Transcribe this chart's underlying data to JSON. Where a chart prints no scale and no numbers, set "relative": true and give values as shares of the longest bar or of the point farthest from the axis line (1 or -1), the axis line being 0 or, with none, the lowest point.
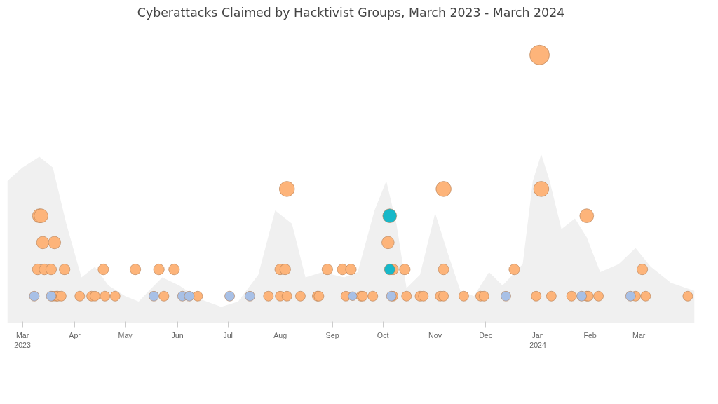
{
  "chart_data": {
    "type": "bubble",
    "title": "Cyberattacks Claimed by Hacktivist Groups, March 2023 - March 2024",
    "relative": true,
    "xlim": [
      "2023-02-20",
      "2024-04-03"
    ],
    "xticks": [
      {
        "value": "2023-03-01",
        "label": "Mar\n2023"
      },
      {
        "value": "2023-04-01",
        "label": "Apr"
      },
      {
        "value": "2023-05-01",
        "label": "May"
      },
      {
        "value": "2023-06-01",
        "label": "Jun"
      },
      {
        "value": "2023-07-01",
        "label": "Jul"
      },
      {
        "value": "2023-08-01",
        "label": "Aug"
      },
      {
        "value": "2023-09-01",
        "label": "Sep"
      },
      {
        "value": "2023-10-01",
        "label": "Oct"
      },
      {
        "value": "2023-11-01",
        "label": "Nov"
      },
      {
        "value": "2023-12-01",
        "label": "Dec"
      },
      {
        "value": "2024-01-01",
        "label": "Jan\n2024"
      },
      {
        "value": "2024-02-01",
        "label": "Feb"
      },
      {
        "value": "2024-03-01",
        "label": "Mar"
      }
    ],
    "grid": false,
    "series": [
      {
        "type": "area",
        "color": "#f0f0f0",
        "x": [
          "2023-02-20",
          "2023-03-01",
          "2023-03-11",
          "2023-03-19",
          "2023-03-27",
          "2023-04-05",
          "2023-04-13",
          "2023-04-21",
          "2023-05-01",
          "2023-05-09",
          "2023-05-15",
          "2023-05-23",
          "2023-06-02",
          "2023-06-14",
          "2023-06-27",
          "2023-07-07",
          "2023-07-19",
          "2023-07-29",
          "2023-08-08",
          "2023-08-16",
          "2023-08-26",
          "2023-09-08",
          "2023-09-16",
          "2023-09-26",
          "2023-10-03",
          "2023-10-09",
          "2023-10-15",
          "2023-10-23",
          "2023-11-01",
          "2023-11-08",
          "2023-11-16",
          "2023-11-24",
          "2023-12-03",
          "2023-12-11",
          "2023-12-23",
          "2023-12-29",
          "2024-01-03",
          "2024-01-08",
          "2024-01-15",
          "2024-01-23",
          "2024-01-30",
          "2024-02-07",
          "2024-02-18",
          "2024-02-28",
          "2024-03-08",
          "2024-03-20",
          "2024-04-03"
        ],
        "values": [
          0.53,
          0.58,
          0.62,
          0.58,
          0.37,
          0.17,
          0.21,
          0.14,
          0.1,
          0.08,
          0.12,
          0.17,
          0.14,
          0.09,
          0.06,
          0.08,
          0.18,
          0.42,
          0.37,
          0.17,
          0.19,
          0.17,
          0.19,
          0.42,
          0.53,
          0.37,
          0.13,
          0.18,
          0.41,
          0.27,
          0.12,
          0.1,
          0.19,
          0.14,
          0.22,
          0.53,
          0.63,
          0.53,
          0.35,
          0.39,
          0.32,
          0.19,
          0.22,
          0.28,
          0.21,
          0.15,
          0.12
        ]
      },
      {
        "color": "#fdb47a",
        "x": [
          "2023-03-19",
          "2023-03-21",
          "2023-03-22",
          "2023-03-24",
          "2023-04-04",
          "2023-04-11",
          "2023-04-13",
          "2023-04-19",
          "2023-04-25",
          "2023-05-24",
          "2023-06-13",
          "2023-07-25",
          "2023-08-01",
          "2023-08-05",
          "2023-08-13",
          "2023-08-23",
          "2023-08-24",
          "2023-09-09",
          "2023-09-18",
          "2023-09-19",
          "2023-09-25",
          "2023-10-07",
          "2023-10-15",
          "2023-10-23",
          "2023-10-25",
          "2023-11-04",
          "2023-11-06",
          "2023-11-18",
          "2023-11-28",
          "2023-11-30",
          "2023-12-31",
          "2024-01-09",
          "2024-01-21",
          "2024-01-30",
          "2024-01-31",
          "2024-02-06",
          "2024-02-28",
          "2024-03-05",
          "2024-03-30",
          "2023-03-10",
          "2023-03-14",
          "2023-03-18",
          "2023-03-26",
          "2023-04-18",
          "2023-05-07",
          "2023-05-21",
          "2023-05-30",
          "2023-08-01",
          "2023-08-04",
          "2023-08-29",
          "2023-09-07",
          "2023-09-12",
          "2023-10-07",
          "2023-10-14",
          "2023-11-06",
          "2023-12-18",
          "2024-03-03",
          "2023-03-13",
          "2023-03-20",
          "2023-10-04",
          "2023-03-11",
          "2023-03-12",
          "2024-01-30",
          "2023-08-05",
          "2023-11-06",
          "2024-01-03",
          "2024-01-02"
        ],
        "values": [
          0.1,
          0.1,
          0.1,
          0.1,
          0.1,
          0.1,
          0.1,
          0.1,
          0.1,
          0.1,
          0.1,
          0.1,
          0.1,
          0.1,
          0.1,
          0.1,
          0.1,
          0.1,
          0.1,
          0.1,
          0.1,
          0.1,
          0.1,
          0.1,
          0.1,
          0.1,
          0.1,
          0.1,
          0.1,
          0.1,
          0.1,
          0.1,
          0.1,
          0.1,
          0.1,
          0.1,
          0.1,
          0.1,
          0.1,
          0.2,
          0.2,
          0.2,
          0.2,
          0.2,
          0.2,
          0.2,
          0.2,
          0.2,
          0.2,
          0.2,
          0.2,
          0.2,
          0.2,
          0.2,
          0.2,
          0.2,
          0.2,
          0.3,
          0.3,
          0.3,
          0.4,
          0.4,
          0.4,
          0.5,
          0.5,
          0.5,
          1.0
        ],
        "sizes": [
          0.25,
          0.25,
          0.25,
          0.25,
          0.25,
          0.25,
          0.25,
          0.25,
          0.25,
          0.25,
          0.25,
          0.25,
          0.25,
          0.25,
          0.25,
          0.25,
          0.25,
          0.25,
          0.25,
          0.25,
          0.25,
          0.25,
          0.25,
          0.25,
          0.25,
          0.25,
          0.25,
          0.25,
          0.25,
          0.25,
          0.25,
          0.25,
          0.25,
          0.25,
          0.25,
          0.25,
          0.25,
          0.25,
          0.25,
          0.3,
          0.3,
          0.3,
          0.3,
          0.3,
          0.3,
          0.3,
          0.3,
          0.3,
          0.3,
          0.3,
          0.3,
          0.3,
          0.3,
          0.3,
          0.3,
          0.3,
          0.3,
          0.4,
          0.4,
          0.4,
          0.5,
          0.5,
          0.5,
          0.6,
          0.6,
          0.6,
          1.0
        ]
      },
      {
        "color": "#a8c0e6",
        "x": [
          "2023-03-08",
          "2023-03-18",
          "2023-05-18",
          "2023-06-04",
          "2023-06-08",
          "2023-07-02",
          "2023-07-14",
          "2023-09-13",
          "2023-10-06",
          "2023-12-13",
          "2024-01-27",
          "2024-02-25"
        ],
        "values": [
          0.1,
          0.1,
          0.1,
          0.1,
          0.1,
          0.1,
          0.1,
          0.1,
          0.1,
          0.1,
          0.1,
          0.1
        ],
        "sizes": [
          0.25,
          0.25,
          0.25,
          0.25,
          0.25,
          0.25,
          0.25,
          0.2,
          0.25,
          0.25,
          0.25,
          0.25
        ]
      },
      {
        "color": "#17b8c9",
        "x": [
          "2023-10-05",
          "2023-10-05"
        ],
        "values": [
          0.2,
          0.4
        ],
        "sizes": [
          0.3,
          0.5
        ]
      }
    ]
  }
}
